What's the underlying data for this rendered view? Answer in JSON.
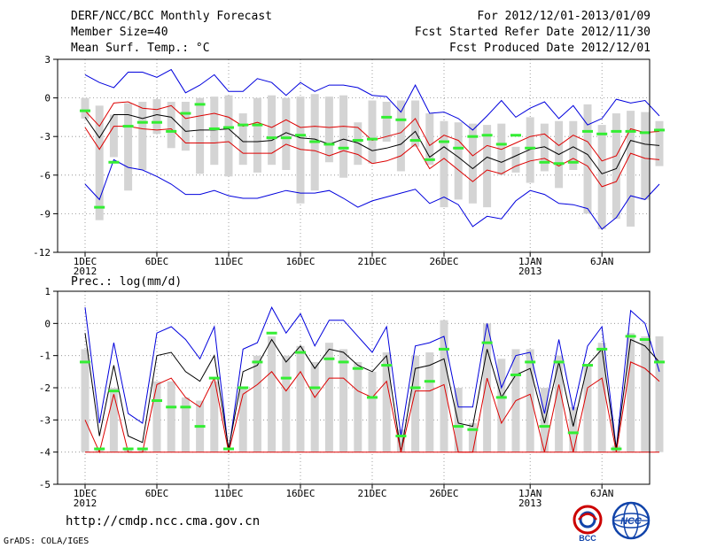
{
  "header": {
    "title": "DERF/NCC/BCC Monthly Forecast",
    "member_size": "Member Size=40",
    "variable": "Mean Surf. Temp.: °C",
    "period": "For 2012/12/01-2013/01/09",
    "refer_date": "Fcst Started Refer Date 2012/11/30",
    "produced_date": "Fcst Produced Date 2012/12/01"
  },
  "footer": {
    "url": "http://cmdp.ncc.cma.gov.cn",
    "credit": "GrADS: COLA/IGES",
    "logo_bcc": "BCC",
    "logo_ncc": "NCC"
  },
  "colors": {
    "max_line": "#0000dd",
    "mean_line": "#000000",
    "spread_line": "#dd0000",
    "box": "#d4d4d4",
    "observed": "#33ee33",
    "grid": "#888888"
  },
  "chart_data": [
    {
      "type": "line",
      "title": "Mean Surf. Temp.: °C",
      "ylim": [
        -12,
        3
      ],
      "yticks": [
        3,
        0,
        -3,
        -6,
        -9,
        -12
      ],
      "xticks": [
        {
          "index": 0,
          "label": "1DEC",
          "sub": "2012"
        },
        {
          "index": 5,
          "label": "6DEC",
          "sub": ""
        },
        {
          "index": 10,
          "label": "11DEC",
          "sub": ""
        },
        {
          "index": 15,
          "label": "16DEC",
          "sub": ""
        },
        {
          "index": 20,
          "label": "21DEC",
          "sub": ""
        },
        {
          "index": 25,
          "label": "26DEC",
          "sub": ""
        },
        {
          "index": 31,
          "label": "1JAN",
          "sub": "2013"
        },
        {
          "index": 36,
          "label": "6JAN",
          "sub": ""
        }
      ],
      "series": [
        {
          "name": "max",
          "color": "#0000dd",
          "values": [
            1.8,
            1.2,
            0.8,
            2.0,
            2.0,
            1.6,
            2.2,
            0.4,
            1.0,
            1.8,
            0.5,
            0.5,
            1.5,
            1.2,
            0.2,
            1.2,
            0.5,
            1.0,
            1.0,
            0.8,
            0.2,
            0.1,
            -1.1,
            1.0,
            -1.2,
            -1.1,
            -1.6,
            -2.5,
            -1.4,
            -0.2,
            -1.5,
            -0.8,
            -0.3,
            -1.6,
            -0.6,
            -2.1,
            -1.6,
            -0.1,
            -0.4,
            -0.2,
            -1.4
          ]
        },
        {
          "name": "upper",
          "color": "#dd0000",
          "values": [
            -1.0,
            -2.2,
            -0.4,
            -0.3,
            -0.8,
            -0.9,
            -0.6,
            -1.6,
            -1.4,
            -1.2,
            -1.5,
            -2.2,
            -1.9,
            -2.3,
            -1.7,
            -2.3,
            -2.2,
            -2.3,
            -2.2,
            -2.3,
            -3.3,
            -3.0,
            -2.7,
            -1.6,
            -3.7,
            -2.9,
            -3.3,
            -4.5,
            -3.7,
            -4.0,
            -3.5,
            -3.0,
            -2.8,
            -3.7,
            -2.9,
            -3.4,
            -4.9,
            -4.5,
            -2.4,
            -2.7,
            -2.6
          ]
        },
        {
          "name": "mean",
          "color": "#000000",
          "values": [
            -1.5,
            -3.1,
            -1.3,
            -1.3,
            -1.6,
            -1.3,
            -1.5,
            -2.6,
            -2.5,
            -2.5,
            -2.4,
            -3.4,
            -3.4,
            -3.3,
            -2.7,
            -3.1,
            -3.2,
            -3.6,
            -3.2,
            -3.5,
            -4.1,
            -3.9,
            -3.6,
            -2.6,
            -4.6,
            -3.8,
            -4.6,
            -5.5,
            -4.6,
            -5.0,
            -4.5,
            -4.0,
            -3.8,
            -4.4,
            -3.8,
            -4.4,
            -5.9,
            -5.5,
            -3.3,
            -3.6,
            -3.7
          ]
        },
        {
          "name": "lower",
          "color": "#dd0000",
          "values": [
            -2.3,
            -4.0,
            -2.2,
            -2.2,
            -2.4,
            -2.5,
            -2.4,
            -3.5,
            -3.5,
            -3.5,
            -3.4,
            -4.3,
            -4.3,
            -4.3,
            -3.6,
            -4.0,
            -4.1,
            -4.5,
            -4.1,
            -4.4,
            -5.1,
            -4.9,
            -4.5,
            -3.6,
            -5.5,
            -4.7,
            -5.6,
            -6.5,
            -5.6,
            -5.9,
            -5.3,
            -4.9,
            -4.7,
            -5.3,
            -4.7,
            -5.3,
            -6.9,
            -6.5,
            -4.3,
            -4.7,
            -4.8
          ]
        },
        {
          "name": "min",
          "color": "#0000dd",
          "values": [
            -6.7,
            -7.9,
            -4.8,
            -5.4,
            -5.6,
            -6.1,
            -6.7,
            -7.5,
            -7.5,
            -7.2,
            -7.6,
            -7.8,
            -7.8,
            -7.5,
            -7.2,
            -7.4,
            -7.4,
            -7.2,
            -7.8,
            -8.5,
            -8.0,
            -7.7,
            -7.4,
            -7.1,
            -8.2,
            -7.7,
            -8.3,
            -10.0,
            -9.2,
            -9.4,
            -8.0,
            -7.2,
            -7.5,
            -8.2,
            -8.3,
            -8.6,
            -10.2,
            -9.3,
            -7.6,
            -7.9,
            -6.7
          ]
        }
      ],
      "boxes": [
        [
          0.0,
          -1.6
        ],
        [
          -0.6,
          -9.5
        ],
        [
          -1.3,
          -4.6
        ],
        [
          -0.4,
          -7.2
        ],
        [
          -0.3,
          -5.6
        ],
        [
          -0.1,
          -2.8
        ],
        [
          -0.3,
          -3.9
        ],
        [
          -0.3,
          -4.1
        ],
        [
          0.0,
          -5.9
        ],
        [
          0.1,
          -5.2
        ],
        [
          0.2,
          -6.1
        ],
        [
          -1.2,
          -5.2
        ],
        [
          0.0,
          -5.8
        ],
        [
          0.2,
          -5.2
        ],
        [
          0.0,
          -5.6
        ],
        [
          0.1,
          -8.2
        ],
        [
          0.3,
          -7.2
        ],
        [
          0.1,
          -5.0
        ],
        [
          0.2,
          -6.2
        ],
        [
          -1.9,
          -5.2
        ],
        [
          -0.2,
          -5.1
        ],
        [
          -0.3,
          -3.4
        ],
        [
          -0.2,
          -5.7
        ],
        [
          -0.2,
          -3.8
        ],
        [
          -1.2,
          -5.2
        ],
        [
          -1.8,
          -8.5
        ],
        [
          -1.9,
          -7.9
        ],
        [
          -2.0,
          -8.2
        ],
        [
          -2.1,
          -8.5
        ],
        [
          -2.0,
          -6.0
        ],
        [
          -3.8,
          -5.8
        ],
        [
          -1.5,
          -6.6
        ],
        [
          -2.0,
          -5.7
        ],
        [
          -1.8,
          -7.0
        ],
        [
          -1.8,
          -5.6
        ],
        [
          -0.5,
          -9.0
        ],
        [
          -2.1,
          -10.2
        ],
        [
          -1.2,
          -9.4
        ],
        [
          -1.0,
          -10.0
        ],
        [
          -1.1,
          -7.9
        ],
        [
          -1.8,
          -5.3
        ]
      ],
      "observed": [
        -1.0,
        -8.5,
        -5.0,
        -2.2,
        -1.9,
        -1.9,
        -2.6,
        -1.2,
        -0.5,
        -2.4,
        -2.3,
        -2.1,
        -2.1,
        -3.1,
        -3.1,
        -2.9,
        -3.4,
        -3.6,
        -3.9,
        -3.3,
        -3.2,
        -1.5,
        -1.7,
        -3.3,
        -4.8,
        -3.4,
        -3.9,
        -3.0,
        -2.9,
        -3.6,
        -2.9,
        -3.9,
        -5.0,
        -5.1,
        -5.0,
        -2.6,
        -2.8,
        -2.6,
        -2.6,
        -2.7,
        -2.5
      ]
    },
    {
      "type": "line",
      "title": "Prec.: log(mm/d)",
      "ylim": [
        -5,
        1
      ],
      "yticks": [
        1,
        0,
        -1,
        -2,
        -3,
        -4,
        -5
      ],
      "xticks": [
        {
          "index": 0,
          "label": "1DEC",
          "sub": "2012"
        },
        {
          "index": 5,
          "label": "6DEC",
          "sub": ""
        },
        {
          "index": 10,
          "label": "11DEC",
          "sub": ""
        },
        {
          "index": 15,
          "label": "16DEC",
          "sub": ""
        },
        {
          "index": 20,
          "label": "21DEC",
          "sub": ""
        },
        {
          "index": 25,
          "label": "26DEC",
          "sub": ""
        },
        {
          "index": 31,
          "label": "1JAN",
          "sub": "2013"
        },
        {
          "index": 36,
          "label": "6JAN",
          "sub": ""
        }
      ],
      "series": [
        {
          "name": "max",
          "color": "#0000dd",
          "values": [
            0.5,
            -3.1,
            -0.6,
            -2.8,
            -3.1,
            -0.3,
            -0.1,
            -0.5,
            -1.1,
            -0.1,
            -4.0,
            -0.8,
            -0.6,
            0.5,
            -0.3,
            0.3,
            -0.7,
            0.1,
            0.1,
            -0.4,
            -0.9,
            -0.1,
            -3.5,
            -0.7,
            -0.6,
            -0.4,
            -2.6,
            -2.6,
            0.0,
            -2.0,
            -1.0,
            -0.9,
            -2.8,
            -0.5,
            -2.7,
            -0.7,
            -0.1,
            -3.9,
            0.4,
            -0.0,
            -1.5
          ]
        },
        {
          "name": "mean",
          "color": "#000000",
          "values": [
            -0.3,
            -3.5,
            -1.3,
            -3.5,
            -3.7,
            -1.0,
            -0.9,
            -1.5,
            -1.8,
            -1.0,
            -3.9,
            -1.5,
            -1.3,
            -0.5,
            -1.2,
            -0.7,
            -1.4,
            -0.8,
            -0.9,
            -1.3,
            -1.5,
            -1.0,
            -4.0,
            -1.4,
            -1.3,
            -1.1,
            -3.1,
            -3.2,
            -0.8,
            -2.3,
            -1.6,
            -1.4,
            -3.1,
            -1.2,
            -3.2,
            -1.3,
            -0.8,
            -3.9,
            -0.5,
            -0.7,
            -1.2
          ]
        },
        {
          "name": "lower",
          "color": "#dd0000",
          "values": [
            -3.0,
            -4.0,
            -2.2,
            -4.0,
            -4.0,
            -1.9,
            -1.7,
            -2.3,
            -2.6,
            -1.7,
            -4.0,
            -2.2,
            -1.9,
            -1.5,
            -2.1,
            -1.5,
            -2.3,
            -1.7,
            -1.7,
            -2.1,
            -2.3,
            -1.8,
            -4.0,
            -2.1,
            -2.1,
            -1.9,
            -4.0,
            -4.0,
            -1.7,
            -3.1,
            -2.4,
            -2.2,
            -4.0,
            -1.9,
            -4.0,
            -2.0,
            -1.7,
            -4.0,
            -1.2,
            -1.4,
            -1.8
          ]
        },
        {
          "name": "floor",
          "color": "#dd0000",
          "values": [
            -4.0,
            -4.0,
            -4.0,
            -4.0,
            -4.0,
            -4.0,
            -4.0,
            -4.0,
            -4.0,
            -4.0,
            -4.0,
            -4.0,
            -4.0,
            -4.0,
            -4.0,
            -4.0,
            -4.0,
            -4.0,
            -4.0,
            -4.0,
            -4.0,
            -4.0,
            -4.0,
            -4.0,
            -4.0,
            -4.0,
            -4.0,
            -4.0,
            -4.0,
            -4.0,
            -4.0,
            -4.0,
            -4.0,
            -4.0,
            -4.0,
            -4.0,
            -4.0,
            -4.0,
            -4.0,
            -4.0,
            -4.0
          ]
        }
      ],
      "boxes": [
        [
          -0.8,
          -4.0
        ],
        [
          -3.9,
          -4.0
        ],
        [
          -2.0,
          -4.0
        ],
        [
          -3.9,
          -4.0
        ],
        [
          -3.9,
          -4.0
        ],
        [
          -1.8,
          -4.0
        ],
        [
          -1.8,
          -4.0
        ],
        [
          -2.3,
          -4.0
        ],
        [
          -2.4,
          -4.0
        ],
        [
          -1.8,
          -4.0
        ],
        [
          -4.0,
          -4.0
        ],
        [
          -2.0,
          -4.0
        ],
        [
          -1.0,
          -4.0
        ],
        [
          -0.4,
          -4.0
        ],
        [
          -1.0,
          -4.0
        ],
        [
          -0.7,
          -4.0
        ],
        [
          -1.2,
          -4.0
        ],
        [
          -0.6,
          -4.0
        ],
        [
          -0.8,
          -4.0
        ],
        [
          -1.2,
          -4.0
        ],
        [
          -1.5,
          -4.0
        ],
        [
          -0.9,
          -4.0
        ],
        [
          -3.3,
          -4.0
        ],
        [
          -1.0,
          -4.0
        ],
        [
          -0.9,
          -4.0
        ],
        [
          0.1,
          -4.0
        ],
        [
          -2.0,
          -4.0
        ],
        [
          -3.1,
          -4.0
        ],
        [
          0.0,
          -4.0
        ],
        [
          -1.1,
          -4.0
        ],
        [
          -0.8,
          -4.0
        ],
        [
          -0.8,
          -4.0
        ],
        [
          -2.0,
          -4.0
        ],
        [
          -1.0,
          -4.0
        ],
        [
          -2.6,
          -4.0
        ],
        [
          -1.3,
          -4.0
        ],
        [
          -0.6,
          -4.0
        ],
        [
          -3.8,
          -4.0
        ],
        [
          -0.3,
          -4.0
        ],
        [
          -0.4,
          -4.0
        ],
        [
          -0.4,
          -4.0
        ]
      ],
      "observed": [
        -1.2,
        -3.9,
        -2.1,
        -3.9,
        -3.9,
        -2.4,
        -2.6,
        -2.6,
        -3.2,
        -1.7,
        -3.9,
        -2.0,
        -1.2,
        -0.3,
        -1.7,
        -0.9,
        -2.0,
        -1.1,
        -1.2,
        -1.4,
        -2.3,
        -1.3,
        -3.5,
        -2.0,
        -1.8,
        -0.8,
        -3.2,
        -3.3,
        -0.6,
        -2.3,
        -1.6,
        -1.2,
        -3.2,
        -1.2,
        -3.4,
        -1.3,
        -0.8,
        -3.9,
        -0.4,
        -0.5,
        -1.2
      ]
    }
  ]
}
